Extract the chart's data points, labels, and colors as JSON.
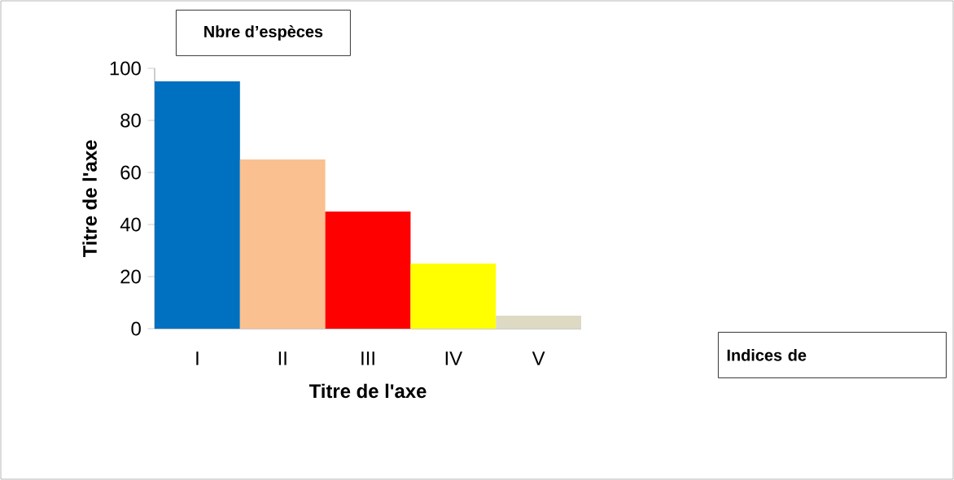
{
  "chart_data": {
    "type": "bar",
    "title": "Nbre d’espèces",
    "categories": [
      "I",
      "II",
      "III",
      "IV",
      "V"
    ],
    "values": [
      95,
      65,
      45,
      25,
      5
    ],
    "colors": [
      "#0070c0",
      "#fac090",
      "#ff0000",
      "#ffff00",
      "#ddd9c3"
    ],
    "xlabel": "Titre de l'axe",
    "ylabel": "Titre de l'axe",
    "ylim": [
      0,
      100
    ],
    "yticks": [
      0,
      20,
      40,
      60,
      80,
      100
    ],
    "annotations": [
      "Indices de"
    ]
  }
}
